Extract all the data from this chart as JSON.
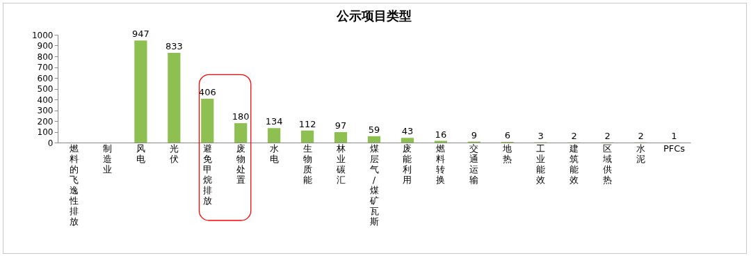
{
  "chart_data": {
    "type": "bar",
    "title": "公示项目类型",
    "categories": [
      "燃料的飞逸性排放",
      "制造业",
      "风电",
      "光伏",
      "避免甲烷排放",
      "废物处置",
      "水电",
      "生物质能",
      "林业碳汇",
      "煤层气/煤矿瓦斯",
      "废能利用",
      "燃料转换",
      "交通运输",
      "地热",
      "工业能效",
      "建筑能效",
      "区域供热",
      "水泥",
      "PFCs"
    ],
    "values": [
      null,
      null,
      947,
      833,
      406,
      180,
      134,
      112,
      97,
      59,
      43,
      16,
      9,
      6,
      3,
      2,
      2,
      2,
      1
    ],
    "color": "#8dc050",
    "ylim": [
      0,
      1000
    ],
    "yticks": [
      0,
      100,
      200,
      300,
      400,
      500,
      600,
      700,
      800,
      900,
      1000
    ],
    "data_labels": true,
    "grid": false
  }
}
